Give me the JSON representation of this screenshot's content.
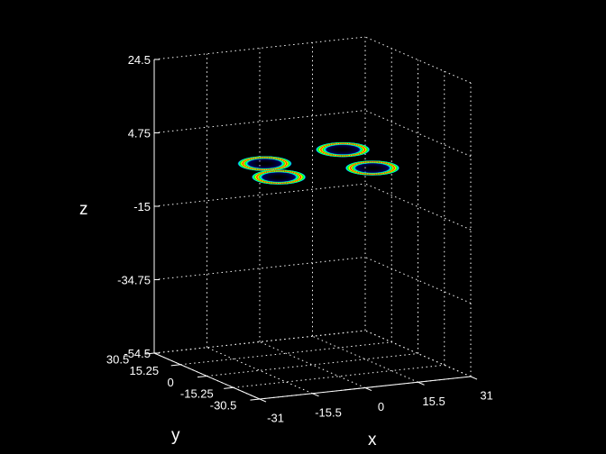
{
  "chart_data": {
    "type": "scatter",
    "title": "",
    "xlabel": "x",
    "ylabel": "y",
    "zlabel": "z",
    "xlim": [
      -31,
      31
    ],
    "ylim": [
      -30.5,
      30.5
    ],
    "zlim": [
      -54.5,
      24.5
    ],
    "x_ticks": [
      "-31",
      "-15.5",
      "0",
      "15.5",
      "31"
    ],
    "y_ticks": [
      "-30.5",
      "-15.25",
      "0",
      "15.25",
      "30.5"
    ],
    "z_ticks": [
      "-54.5",
      "-34.75",
      "-15",
      "4.75",
      "24.5"
    ],
    "grid": true,
    "background_color": "#000000",
    "foreground_color": "#ffffff",
    "colormap": [
      "#000080",
      "#0000ff",
      "#00ffff",
      "#00ff00",
      "#ffff00",
      "#ff0000"
    ],
    "series": [
      {
        "x": -12,
        "y": 4,
        "z": 0,
        "radius": 5
      },
      {
        "x": 14,
        "y": 10,
        "z": 0,
        "radius": 5
      },
      {
        "x": -16,
        "y": -12,
        "z": 0,
        "radius": 5
      },
      {
        "x": 11,
        "y": -13,
        "z": 0,
        "radius": 5
      }
    ]
  }
}
